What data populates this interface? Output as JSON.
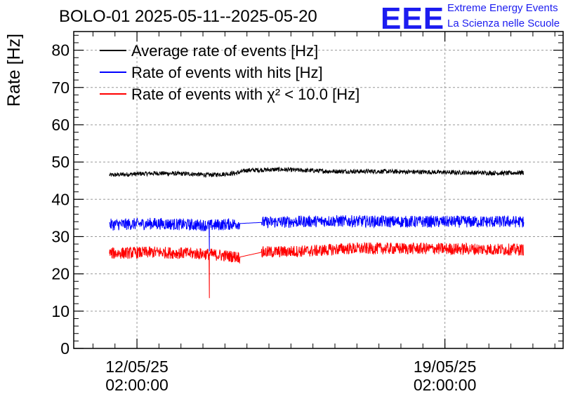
{
  "header": {
    "title": "BOLO-01 2025-05-11--2025-05-20",
    "logo_text": "EEE",
    "logo_line1": "Extreme Energy Events",
    "logo_line2": "La Scienza nelle Scuole"
  },
  "colors": {
    "average": "#000000",
    "hits": "#0000ff",
    "chi2": "#ff0000",
    "logo": "#1c1cf0"
  },
  "chart_data": {
    "type": "line",
    "ylabel": "Rate [Hz]",
    "ylim": [
      0,
      85
    ],
    "yticks": [
      0,
      10,
      20,
      30,
      40,
      50,
      60,
      70,
      80
    ],
    "xlim": [
      "2025-05-10T15:30:00",
      "2025-05-21T18:30:00"
    ],
    "xticks": [
      {
        "date": "12/05/25",
        "time": "02:00:00",
        "t": "2025-05-12T02:00:00"
      },
      {
        "date": "19/05/25",
        "time": "02:00:00",
        "t": "2025-05-19T02:00:00"
      }
    ],
    "grid": true,
    "legend_position": "top-left",
    "series": [
      {
        "name": "Average rate of events [Hz]",
        "color": "#000000",
        "noise": 0.6,
        "points": [
          [
            "2025-05-11T11:00:00",
            46.5
          ],
          [
            "2025-05-12T12:00:00",
            47.0
          ],
          [
            "2025-05-13T08:00:00",
            46.8
          ],
          [
            "2025-05-13T17:00:00",
            46.5
          ],
          [
            "2025-05-14T08:00:00",
            47.0
          ],
          [
            "2025-05-14T14:00:00",
            47.8
          ],
          [
            "2025-05-15T08:00:00",
            48.0
          ],
          [
            "2025-05-16T12:00:00",
            47.5
          ],
          [
            "2025-05-17T12:00:00",
            47.5
          ],
          [
            "2025-05-18T18:00:00",
            47.3
          ],
          [
            "2025-05-20T12:00:00",
            47.0
          ],
          [
            "2025-05-20T21:00:00",
            47.2
          ]
        ]
      },
      {
        "name": "Rate of events with hits [Hz]",
        "color": "#0000ff",
        "noise": 1.6,
        "gap": [
          "2025-05-14T10:00:00",
          "2025-05-14T22:00:00"
        ],
        "spike": {
          "t": "2025-05-13T17:30:00",
          "value": 26
        },
        "points": [
          [
            "2025-05-11T11:00:00",
            33.2
          ],
          [
            "2025-05-12T12:00:00",
            33.5
          ],
          [
            "2025-05-13T17:00:00",
            33.0
          ],
          [
            "2025-05-14T10:00:00",
            33.5
          ],
          [
            "2025-05-14T22:00:00",
            33.8
          ],
          [
            "2025-05-16T12:00:00",
            34.2
          ],
          [
            "2025-05-18T00:00:00",
            34.0
          ],
          [
            "2025-05-20T21:00:00",
            34.0
          ]
        ]
      },
      {
        "name": "Rate of events with χ² < 10.0 [Hz]",
        "color": "#ff0000",
        "noise": 1.6,
        "gap": [
          "2025-05-14T10:00:00",
          "2025-05-14T22:00:00"
        ],
        "spike": {
          "t": "2025-05-13T17:30:00",
          "value": 13.5
        },
        "points": [
          [
            "2025-05-11T11:00:00",
            25.5
          ],
          [
            "2025-05-12T12:00:00",
            25.8
          ],
          [
            "2025-05-13T17:00:00",
            25.3
          ],
          [
            "2025-05-14T10:00:00",
            24.5
          ],
          [
            "2025-05-14T22:00:00",
            25.8
          ],
          [
            "2025-05-16T04:00:00",
            26.2
          ],
          [
            "2025-05-16T20:00:00",
            26.8
          ],
          [
            "2025-05-18T12:00:00",
            26.8
          ],
          [
            "2025-05-20T21:00:00",
            26.5
          ]
        ]
      }
    ]
  }
}
